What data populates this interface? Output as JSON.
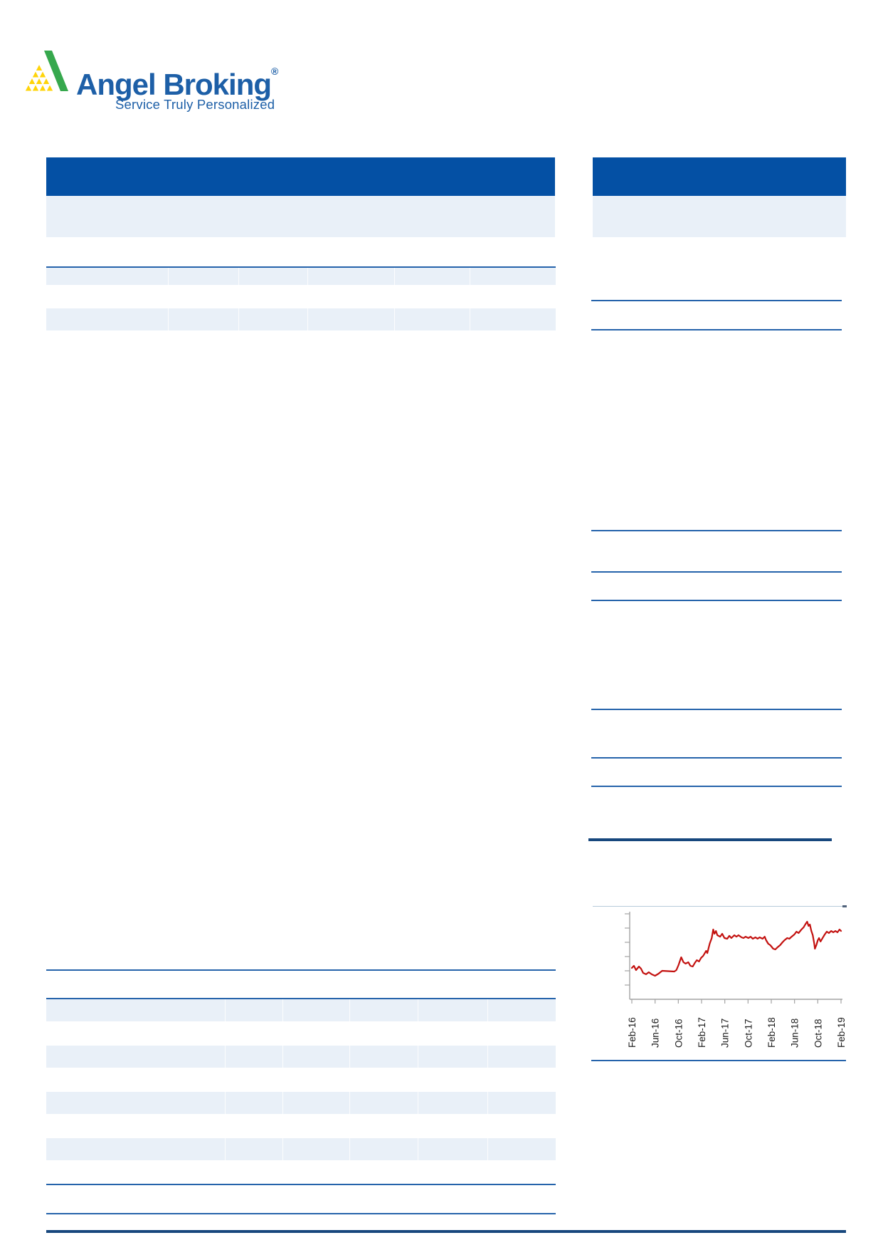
{
  "brand": {
    "name": "Angel Broking",
    "registered_mark": "®",
    "tagline": "Service Truly Personalized",
    "logo_icon": "angel-pyramid-icon",
    "colors": {
      "text_blue": "#1d5fa7",
      "pyramid_green": "#36a84d",
      "pyramid_yellow": "#ffd40a"
    }
  },
  "theme_colors": {
    "header_bar_blue": "#0450a4",
    "light_panel_blue": "#e9f0f8",
    "rule_blue": "#2563ab",
    "rule_dark_navy": "#17477d",
    "chart_line_red": "#c3110f",
    "axis_gray": "#a3a3a3",
    "tick_label_black": "#1c1c1c"
  },
  "chart_data": {
    "type": "line",
    "description": "share price history line chart (no title or numeric y-axis labels visible)",
    "x_tick_labels": [
      "Feb-16",
      "Jun-16",
      "Oct-16",
      "Feb-17",
      "Jun-17",
      "Oct-17",
      "Feb-18",
      "Jun-18",
      "Oct-18",
      "Feb-19"
    ],
    "y_axis": {
      "numeric_labels_visible": false,
      "tick_count": 6
    },
    "grid": false,
    "legend": false,
    "axis_color": "#a3a3a3",
    "tick_label_color": "#1c1c1c",
    "series": [
      {
        "name": "share price (normalized 0-1 of plot height)",
        "color": "#c3110f",
        "points_norm": [
          [
            0.0,
            0.358
          ],
          [
            0.01,
            0.382
          ],
          [
            0.02,
            0.333
          ],
          [
            0.034,
            0.374
          ],
          [
            0.044,
            0.35
          ],
          [
            0.054,
            0.301
          ],
          [
            0.068,
            0.285
          ],
          [
            0.081,
            0.309
          ],
          [
            0.095,
            0.285
          ],
          [
            0.111,
            0.268
          ],
          [
            0.128,
            0.293
          ],
          [
            0.145,
            0.325
          ],
          [
            0.203,
            0.317
          ],
          [
            0.213,
            0.333
          ],
          [
            0.223,
            0.39
          ],
          [
            0.236,
            0.48
          ],
          [
            0.247,
            0.423
          ],
          [
            0.257,
            0.407
          ],
          [
            0.27,
            0.423
          ],
          [
            0.28,
            0.382
          ],
          [
            0.291,
            0.374
          ],
          [
            0.301,
            0.415
          ],
          [
            0.311,
            0.447
          ],
          [
            0.321,
            0.431
          ],
          [
            0.331,
            0.472
          ],
          [
            0.341,
            0.496
          ],
          [
            0.355,
            0.553
          ],
          [
            0.361,
            0.528
          ],
          [
            0.372,
            0.634
          ],
          [
            0.382,
            0.699
          ],
          [
            0.389,
            0.797
          ],
          [
            0.395,
            0.748
          ],
          [
            0.402,
            0.78
          ],
          [
            0.409,
            0.732
          ],
          [
            0.422,
            0.715
          ],
          [
            0.432,
            0.748
          ],
          [
            0.443,
            0.699
          ],
          [
            0.456,
            0.691
          ],
          [
            0.466,
            0.724
          ],
          [
            0.476,
            0.699
          ],
          [
            0.49,
            0.732
          ],
          [
            0.5,
            0.715
          ],
          [
            0.51,
            0.732
          ],
          [
            0.524,
            0.707
          ],
          [
            0.534,
            0.699
          ],
          [
            0.544,
            0.715
          ],
          [
            0.557,
            0.699
          ],
          [
            0.568,
            0.715
          ],
          [
            0.578,
            0.691
          ],
          [
            0.591,
            0.707
          ],
          [
            0.601,
            0.691
          ],
          [
            0.611,
            0.707
          ],
          [
            0.625,
            0.691
          ],
          [
            0.635,
            0.715
          ],
          [
            0.642,
            0.675
          ],
          [
            0.652,
            0.634
          ],
          [
            0.662,
            0.618
          ],
          [
            0.676,
            0.577
          ],
          [
            0.686,
            0.569
          ],
          [
            0.696,
            0.593
          ],
          [
            0.709,
            0.618
          ],
          [
            0.72,
            0.65
          ],
          [
            0.73,
            0.675
          ],
          [
            0.743,
            0.699
          ],
          [
            0.753,
            0.691
          ],
          [
            0.764,
            0.715
          ],
          [
            0.777,
            0.74
          ],
          [
            0.787,
            0.772
          ],
          [
            0.797,
            0.756
          ],
          [
            0.811,
            0.797
          ],
          [
            0.821,
            0.821
          ],
          [
            0.831,
            0.862
          ],
          [
            0.838,
            0.886
          ],
          [
            0.845,
            0.837
          ],
          [
            0.851,
            0.854
          ],
          [
            0.858,
            0.78
          ],
          [
            0.865,
            0.732
          ],
          [
            0.872,
            0.634
          ],
          [
            0.875,
            0.577
          ],
          [
            0.882,
            0.618
          ],
          [
            0.889,
            0.675
          ],
          [
            0.895,
            0.699
          ],
          [
            0.902,
            0.659
          ],
          [
            0.912,
            0.699
          ],
          [
            0.922,
            0.74
          ],
          [
            0.932,
            0.772
          ],
          [
            0.942,
            0.756
          ],
          [
            0.953,
            0.78
          ],
          [
            0.963,
            0.764
          ],
          [
            0.973,
            0.78
          ],
          [
            0.983,
            0.764
          ],
          [
            0.993,
            0.797
          ],
          [
            1.0,
            0.78
          ]
        ]
      }
    ]
  }
}
